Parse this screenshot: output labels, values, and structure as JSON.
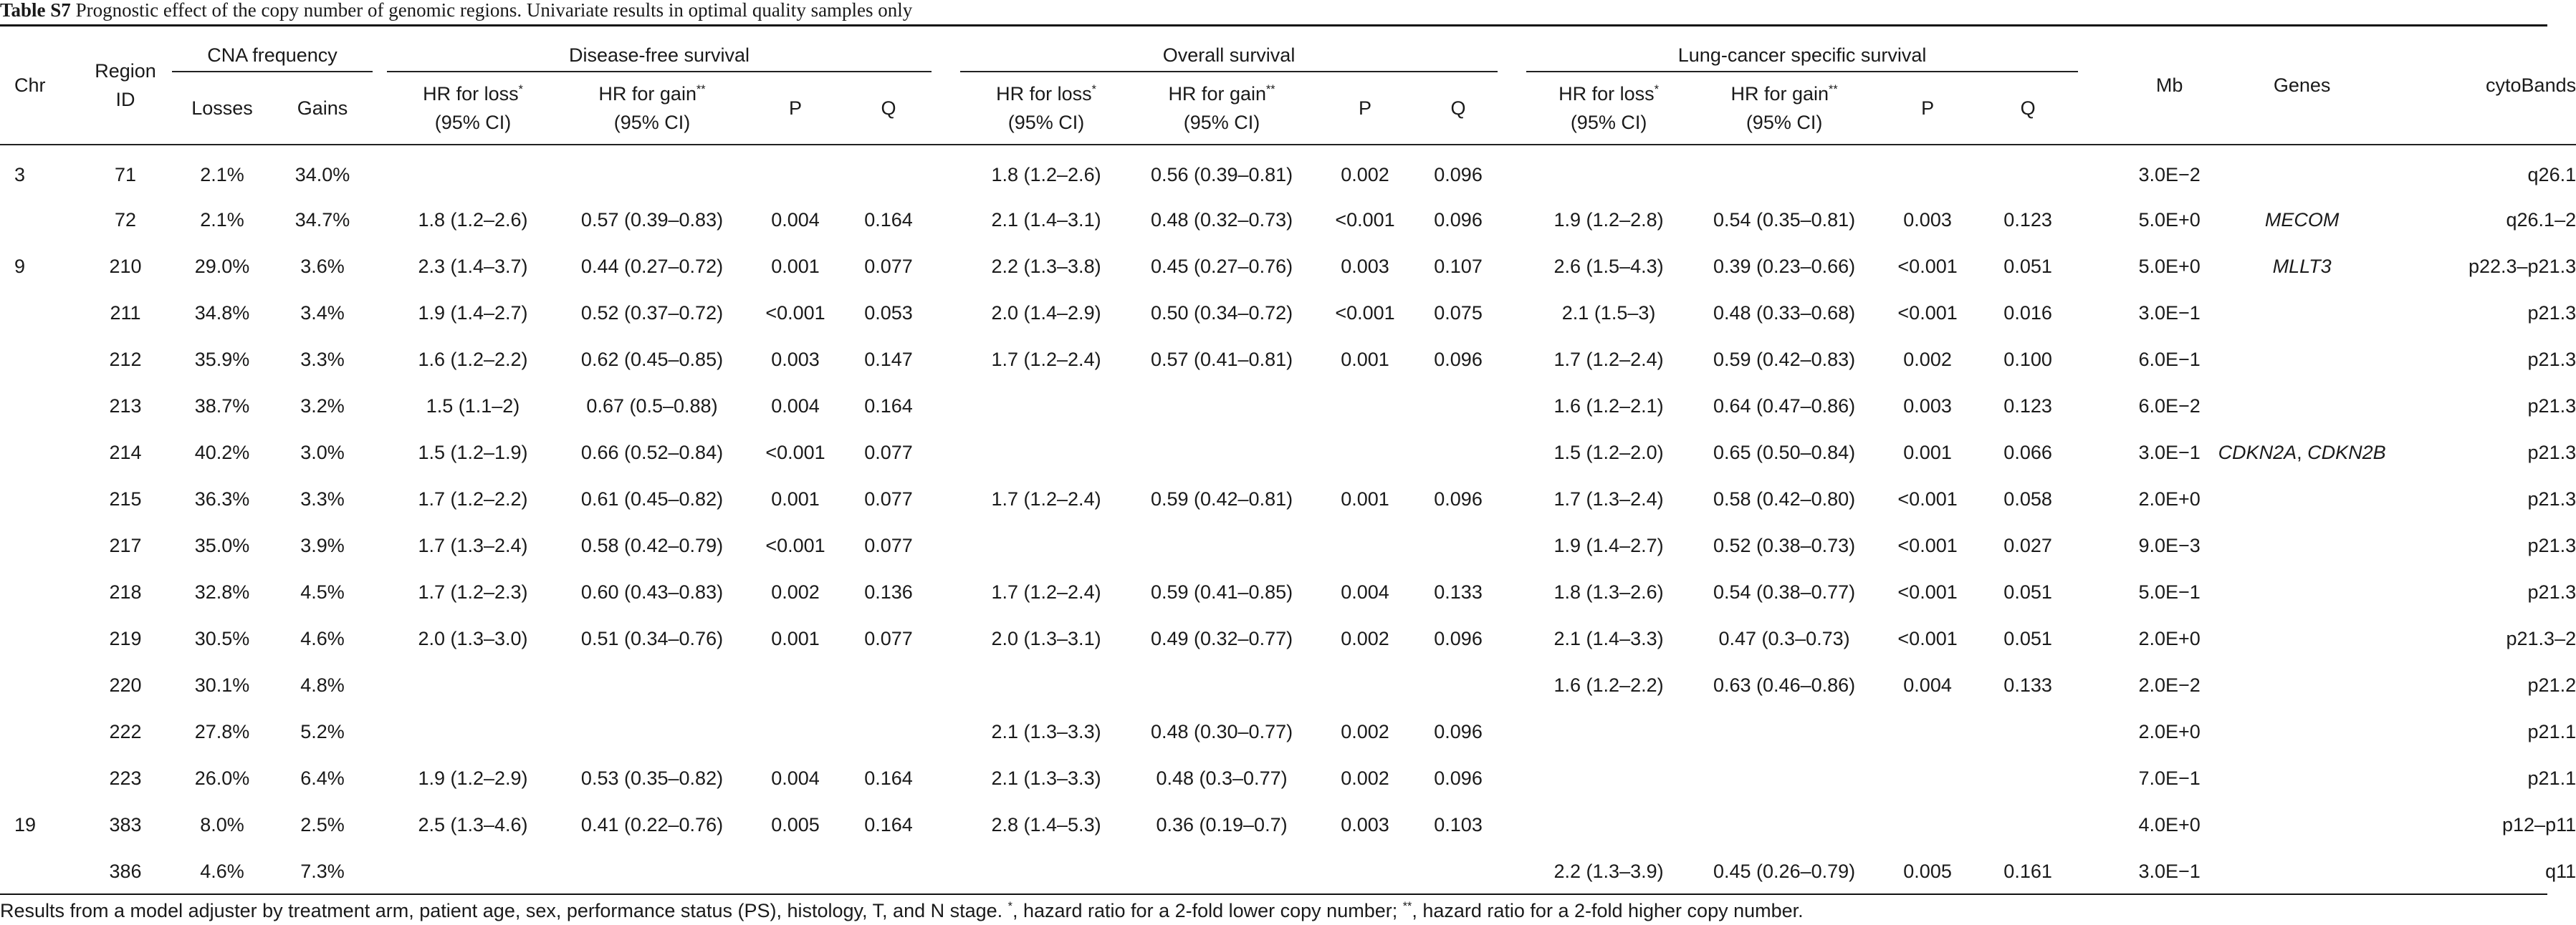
{
  "caption": {
    "label": "Table S7",
    "text": "Prognostic effect of the copy number of genomic regions. Univariate results in optimal quality samples only"
  },
  "headers": {
    "chr": "Chr",
    "region_id_1": "Region",
    "region_id_2": "ID",
    "cna_group": "CNA frequency",
    "dfs_group": "Disease-free survival",
    "os_group": "Overall survival",
    "lcss_group": "Lung-cancer specific survival",
    "losses": "Losses",
    "gains": "Gains",
    "hr_loss": "HR for loss",
    "hr_loss_mark": "*",
    "hr_gain": "HR for gain",
    "hr_gain_mark": "**",
    "ci": "(95% CI)",
    "p": "P",
    "q": "Q",
    "mb": "Mb",
    "genes": "Genes",
    "cytobands": "cytoBands"
  },
  "rows": [
    {
      "chr": "3",
      "id": "71",
      "losses": "2.1%",
      "gains": "34.0%",
      "dfs_hr_loss": "",
      "dfs_hr_gain": "",
      "dfs_p": "",
      "dfs_q": "",
      "os_hr_loss": "1.8 (1.2–2.6)",
      "os_hr_gain": "0.56 (0.39–0.81)",
      "os_p": "0.002",
      "os_q": "0.096",
      "lc_hr_loss": "",
      "lc_hr_gain": "",
      "lc_p": "",
      "lc_q": "",
      "mb": "3.0E−2",
      "genes": [
        "",
        ""
      ],
      "cyto": "q26.1"
    },
    {
      "chr": "",
      "id": "72",
      "losses": "2.1%",
      "gains": "34.7%",
      "dfs_hr_loss": "1.8 (1.2–2.6)",
      "dfs_hr_gain": "0.57 (0.39–0.83)",
      "dfs_p": "0.004",
      "dfs_q": "0.164",
      "os_hr_loss": "2.1 (1.4–3.1)",
      "os_hr_gain": "0.48 (0.32–0.73)",
      "os_p": "<0.001",
      "os_q": "0.096",
      "lc_hr_loss": "1.9 (1.2–2.8)",
      "lc_hr_gain": "0.54 (0.35–0.81)",
      "lc_p": "0.003",
      "lc_q": "0.123",
      "mb": "5.0E+0",
      "genes": [
        "MECOM",
        ""
      ],
      "cyto": "q26.1–2"
    },
    {
      "chr": "9",
      "id": "210",
      "losses": "29.0%",
      "gains": "3.6%",
      "dfs_hr_loss": "2.3 (1.4–3.7)",
      "dfs_hr_gain": "0.44 (0.27–0.72)",
      "dfs_p": "0.001",
      "dfs_q": "0.077",
      "os_hr_loss": "2.2 (1.3–3.8)",
      "os_hr_gain": "0.45 (0.27–0.76)",
      "os_p": "0.003",
      "os_q": "0.107",
      "lc_hr_loss": "2.6 (1.5–4.3)",
      "lc_hr_gain": "0.39 (0.23–0.66)",
      "lc_p": "<0.001",
      "lc_q": "0.051",
      "mb": "5.0E+0",
      "genes": [
        "MLLT3",
        ""
      ],
      "cyto": "p22.3–p21.3"
    },
    {
      "chr": "",
      "id": "211",
      "losses": "34.8%",
      "gains": "3.4%",
      "dfs_hr_loss": "1.9 (1.4–2.7)",
      "dfs_hr_gain": "0.52 (0.37–0.72)",
      "dfs_p": "<0.001",
      "dfs_q": "0.053",
      "os_hr_loss": "2.0 (1.4–2.9)",
      "os_hr_gain": "0.50 (0.34–0.72)",
      "os_p": "<0.001",
      "os_q": "0.075",
      "lc_hr_loss": "2.1 (1.5–3)",
      "lc_hr_gain": "0.48 (0.33–0.68)",
      "lc_p": "<0.001",
      "lc_q": "0.016",
      "mb": "3.0E−1",
      "genes": [
        "",
        ""
      ],
      "cyto": "p21.3"
    },
    {
      "chr": "",
      "id": "212",
      "losses": "35.9%",
      "gains": "3.3%",
      "dfs_hr_loss": "1.6 (1.2–2.2)",
      "dfs_hr_gain": "0.62 (0.45–0.85)",
      "dfs_p": "0.003",
      "dfs_q": "0.147",
      "os_hr_loss": "1.7 (1.2–2.4)",
      "os_hr_gain": "0.57 (0.41–0.81)",
      "os_p": "0.001",
      "os_q": "0.096",
      "lc_hr_loss": "1.7 (1.2–2.4)",
      "lc_hr_gain": "0.59 (0.42–0.83)",
      "lc_p": "0.002",
      "lc_q": "0.100",
      "mb": "6.0E−1",
      "genes": [
        "",
        ""
      ],
      "cyto": "p21.3"
    },
    {
      "chr": "",
      "id": "213",
      "losses": "38.7%",
      "gains": "3.2%",
      "dfs_hr_loss": "1.5 (1.1–2)",
      "dfs_hr_gain": "0.67 (0.5–0.88)",
      "dfs_p": "0.004",
      "dfs_q": "0.164",
      "os_hr_loss": "",
      "os_hr_gain": "",
      "os_p": "",
      "os_q": "",
      "lc_hr_loss": "1.6 (1.2–2.1)",
      "lc_hr_gain": "0.64 (0.47–0.86)",
      "lc_p": "0.003",
      "lc_q": "0.123",
      "mb": "6.0E−2",
      "genes": [
        "",
        ""
      ],
      "cyto": "p21.3"
    },
    {
      "chr": "",
      "id": "214",
      "losses": "40.2%",
      "gains": "3.0%",
      "dfs_hr_loss": "1.5 (1.2–1.9)",
      "dfs_hr_gain": "0.66 (0.52–0.84)",
      "dfs_p": "<0.001",
      "dfs_q": "0.077",
      "os_hr_loss": "",
      "os_hr_gain": "",
      "os_p": "",
      "os_q": "",
      "lc_hr_loss": "1.5 (1.2–2.0)",
      "lc_hr_gain": "0.65 (0.50–0.84)",
      "lc_p": "0.001",
      "lc_q": "0.066",
      "mb": "3.0E−1",
      "genes": [
        "CDKN2A",
        "CDKN2B"
      ],
      "genes_sep": ", ",
      "cyto": "p21.3"
    },
    {
      "chr": "",
      "id": "215",
      "losses": "36.3%",
      "gains": "3.3%",
      "dfs_hr_loss": "1.7 (1.2–2.2)",
      "dfs_hr_gain": "0.61 (0.45–0.82)",
      "dfs_p": "0.001",
      "dfs_q": "0.077",
      "os_hr_loss": "1.7 (1.2–2.4)",
      "os_hr_gain": "0.59 (0.42–0.81)",
      "os_p": "0.001",
      "os_q": "0.096",
      "lc_hr_loss": "1.7 (1.3–2.4)",
      "lc_hr_gain": "0.58 (0.42–0.80)",
      "lc_p": "<0.001",
      "lc_q": "0.058",
      "mb": "2.0E+0",
      "genes": [
        "",
        ""
      ],
      "cyto": "p21.3"
    },
    {
      "chr": "",
      "id": "217",
      "losses": "35.0%",
      "gains": "3.9%",
      "dfs_hr_loss": "1.7 (1.3–2.4)",
      "dfs_hr_gain": "0.58 (0.42–0.79)",
      "dfs_p": "<0.001",
      "dfs_q": "0.077",
      "os_hr_loss": "",
      "os_hr_gain": "",
      "os_p": "",
      "os_q": "",
      "lc_hr_loss": "1.9 (1.4–2.7)",
      "lc_hr_gain": "0.52 (0.38–0.73)",
      "lc_p": "<0.001",
      "lc_q": "0.027",
      "mb": "9.0E−3",
      "genes": [
        "",
        ""
      ],
      "cyto": "p21.3"
    },
    {
      "chr": "",
      "id": "218",
      "losses": "32.8%",
      "gains": "4.5%",
      "dfs_hr_loss": "1.7 (1.2–2.3)",
      "dfs_hr_gain": "0.60 (0.43–0.83)",
      "dfs_p": "0.002",
      "dfs_q": "0.136",
      "os_hr_loss": "1.7 (1.2–2.4)",
      "os_hr_gain": "0.59 (0.41–0.85)",
      "os_p": "0.004",
      "os_q": "0.133",
      "lc_hr_loss": "1.8 (1.3–2.6)",
      "lc_hr_gain": "0.54 (0.38–0.77)",
      "lc_p": "<0.001",
      "lc_q": "0.051",
      "mb": "5.0E−1",
      "genes": [
        "",
        ""
      ],
      "cyto": "p21.3"
    },
    {
      "chr": "",
      "id": "219",
      "losses": "30.5%",
      "gains": "4.6%",
      "dfs_hr_loss": "2.0 (1.3–3.0)",
      "dfs_hr_gain": "0.51 (0.34–0.76)",
      "dfs_p": "0.001",
      "dfs_q": "0.077",
      "os_hr_loss": "2.0 (1.3–3.1)",
      "os_hr_gain": "0.49 (0.32–0.77)",
      "os_p": "0.002",
      "os_q": "0.096",
      "lc_hr_loss": "2.1 (1.4–3.3)",
      "lc_hr_gain": "0.47 (0.3–0.73)",
      "lc_p": "<0.001",
      "lc_q": "0.051",
      "mb": "2.0E+0",
      "genes": [
        "",
        ""
      ],
      "cyto": "p21.3–2"
    },
    {
      "chr": "",
      "id": "220",
      "losses": "30.1%",
      "gains": "4.8%",
      "dfs_hr_loss": "",
      "dfs_hr_gain": "",
      "dfs_p": "",
      "dfs_q": "",
      "os_hr_loss": "",
      "os_hr_gain": "",
      "os_p": "",
      "os_q": "",
      "lc_hr_loss": "1.6 (1.2–2.2)",
      "lc_hr_gain": "0.63 (0.46–0.86)",
      "lc_p": "0.004",
      "lc_q": "0.133",
      "mb": "2.0E−2",
      "genes": [
        "",
        ""
      ],
      "cyto": "p21.2"
    },
    {
      "chr": "",
      "id": "222",
      "losses": "27.8%",
      "gains": "5.2%",
      "dfs_hr_loss": "",
      "dfs_hr_gain": "",
      "dfs_p": "",
      "dfs_q": "",
      "os_hr_loss": "2.1 (1.3–3.3)",
      "os_hr_gain": "0.48 (0.30–0.77)",
      "os_p": "0.002",
      "os_q": "0.096",
      "lc_hr_loss": "",
      "lc_hr_gain": "",
      "lc_p": "",
      "lc_q": "",
      "mb": "2.0E+0",
      "genes": [
        "",
        ""
      ],
      "cyto": "p21.1"
    },
    {
      "chr": "",
      "id": "223",
      "losses": "26.0%",
      "gains": "6.4%",
      "dfs_hr_loss": "1.9 (1.2–2.9)",
      "dfs_hr_gain": "0.53 (0.35–0.82)",
      "dfs_p": "0.004",
      "dfs_q": "0.164",
      "os_hr_loss": "2.1 (1.3–3.3)",
      "os_hr_gain": "0.48 (0.3–0.77)",
      "os_p": "0.002",
      "os_q": "0.096",
      "lc_hr_loss": "",
      "lc_hr_gain": "",
      "lc_p": "",
      "lc_q": "",
      "mb": "7.0E−1",
      "genes": [
        "",
        ""
      ],
      "cyto": "p21.1"
    },
    {
      "chr": "19",
      "id": "383",
      "losses": "8.0%",
      "gains": "2.5%",
      "dfs_hr_loss": "2.5 (1.3–4.6)",
      "dfs_hr_gain": "0.41 (0.22–0.76)",
      "dfs_p": "0.005",
      "dfs_q": "0.164",
      "os_hr_loss": "2.8 (1.4–5.3)",
      "os_hr_gain": "0.36 (0.19–0.7)",
      "os_p": "0.003",
      "os_q": "0.103",
      "lc_hr_loss": "",
      "lc_hr_gain": "",
      "lc_p": "",
      "lc_q": "",
      "mb": "4.0E+0",
      "genes": [
        "",
        ""
      ],
      "cyto": "p12–p11"
    },
    {
      "chr": "",
      "id": "386",
      "losses": "4.6%",
      "gains": "7.3%",
      "dfs_hr_loss": "",
      "dfs_hr_gain": "",
      "dfs_p": "",
      "dfs_q": "",
      "os_hr_loss": "",
      "os_hr_gain": "",
      "os_p": "",
      "os_q": "",
      "lc_hr_loss": "2.2 (1.3–3.9)",
      "lc_hr_gain": "0.45 (0.26–0.79)",
      "lc_p": "0.005",
      "lc_q": "0.161",
      "mb": "3.0E−1",
      "genes": [
        "",
        ""
      ],
      "cyto": "q11"
    }
  ],
  "footnote": {
    "main": "Results from a model adjuster by treatment arm, patient age, sex, performance status (PS), histology, T, and N stage. ",
    "mark1": "*",
    "text1": ", hazard ratio for a 2-fold lower copy number; ",
    "mark2": "**",
    "text2": ", hazard ratio for a 2-fold higher copy number."
  }
}
